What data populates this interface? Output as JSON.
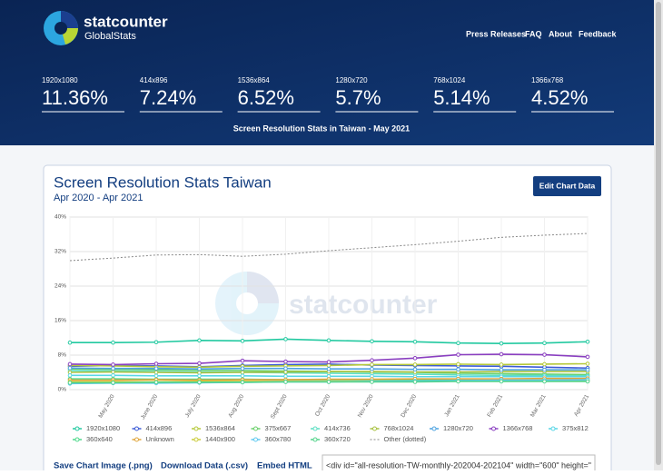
{
  "header": {
    "logo": "statcounter",
    "logo_sub": "GlobalStats",
    "nav": [
      "Press Releases",
      "FAQ",
      "About",
      "Feedback"
    ],
    "stats": [
      {
        "label": "1920x1080",
        "value": "11.36%"
      },
      {
        "label": "414x896",
        "value": "7.24%"
      },
      {
        "label": "1536x864",
        "value": "6.52%"
      },
      {
        "label": "1280x720",
        "value": "5.7%"
      },
      {
        "label": "768x1024",
        "value": "5.14%"
      },
      {
        "label": "1366x768",
        "value": "4.52%"
      }
    ],
    "subtitle": "Screen Resolution Stats in Taiwan - May 2021"
  },
  "card": {
    "title": "Screen Resolution Stats Taiwan",
    "subtitle": "Apr 2020 - Apr 2021",
    "button": "Edit Chart Data",
    "watermark": "statcounter",
    "links": [
      "Save Chart Image (.png)",
      "Download Data (.csv)",
      "Embed HTML"
    ],
    "embed_code": "<div id=\"all-resolution-TW-monthly-202004-202104\" width=\"600\" height=\""
  },
  "chart": {
    "type": "line",
    "categories": [
      null,
      "May 2020",
      "June 2020",
      "July 2020",
      "Aug 2020",
      "Sept 2020",
      "Oct 2020",
      "Nov 2020",
      "Dec 2020",
      "Jan 2021",
      "Feb 2021",
      "Mar 2021",
      "Apr 2021"
    ],
    "ylim": [
      0,
      40
    ],
    "yticks": [
      {
        "value": 0,
        "label": "0%"
      },
      {
        "value": 8,
        "label": "8%"
      },
      {
        "value": 16,
        "label": "16%"
      },
      {
        "value": 24,
        "label": "24%"
      },
      {
        "value": 32,
        "label": "32%"
      },
      {
        "value": 40,
        "label": "40%"
      }
    ],
    "grid": true,
    "series": [
      {
        "name": "1920x1080",
        "color": "#22c9a0",
        "values": [
          10.9,
          10.9,
          11.0,
          11.4,
          11.3,
          11.7,
          11.4,
          11.2,
          11.1,
          10.8,
          10.7,
          10.8,
          11.1
        ]
      },
      {
        "name": "414x896",
        "color": "#3c5bd6",
        "values": [
          5.4,
          5.6,
          5.5,
          5.3,
          5.6,
          5.8,
          5.9,
          5.7,
          5.6,
          5.5,
          5.4,
          5.2,
          5.0
        ]
      },
      {
        "name": "1536x864",
        "color": "#b5c93a",
        "values": [
          5.6,
          5.5,
          5.3,
          5.2,
          5.4,
          5.5,
          5.6,
          5.8,
          5.8,
          5.9,
          5.8,
          5.9,
          6.0
        ]
      },
      {
        "name": "375x667",
        "color": "#6bd06b",
        "values": [
          4.8,
          4.7,
          4.6,
          4.5,
          4.4,
          4.3,
          4.2,
          4.1,
          4.0,
          3.8,
          3.7,
          3.6,
          3.5
        ]
      },
      {
        "name": "414x736",
        "color": "#5ddfc3",
        "values": [
          4.4,
          4.3,
          4.2,
          4.1,
          4.0,
          3.9,
          3.8,
          3.7,
          3.6,
          3.4,
          3.3,
          3.3,
          3.2
        ]
      },
      {
        "name": "768x1024",
        "color": "#a7c13f",
        "values": [
          4.0,
          4.1,
          4.0,
          3.9,
          4.0,
          4.1,
          4.2,
          4.2,
          4.1,
          4.1,
          4.2,
          4.2,
          4.2
        ]
      },
      {
        "name": "1280x720",
        "color": "#4ea3e0",
        "values": [
          5.0,
          4.9,
          4.9,
          4.8,
          4.9,
          4.9,
          4.8,
          4.8,
          4.7,
          4.7,
          4.6,
          4.6,
          4.6
        ]
      },
      {
        "name": "1366x768",
        "color": "#8a3fc0",
        "values": [
          5.9,
          5.8,
          6.0,
          6.1,
          6.7,
          6.5,
          6.4,
          6.8,
          7.3,
          8.1,
          8.2,
          8.1,
          7.6
        ]
      },
      {
        "name": "375x812",
        "color": "#58d6e6",
        "values": [
          3.3,
          3.3,
          3.2,
          3.2,
          3.2,
          3.1,
          3.1,
          3.1,
          3.0,
          3.0,
          3.0,
          3.0,
          3.0
        ]
      },
      {
        "name": "360x640",
        "color": "#4ed98b",
        "values": [
          2.5,
          2.5,
          2.4,
          2.4,
          2.4,
          2.3,
          2.3,
          2.3,
          2.3,
          2.2,
          2.2,
          2.2,
          2.2
        ]
      },
      {
        "name": "Unknown",
        "color": "#e0a53a",
        "values": [
          2.2,
          2.2,
          2.3,
          2.2,
          2.3,
          2.3,
          2.4,
          2.4,
          2.5,
          2.5,
          2.5,
          2.6,
          2.6
        ]
      },
      {
        "name": "1440x900",
        "color": "#cbcc3b",
        "values": [
          1.8,
          1.8,
          1.8,
          1.9,
          1.9,
          1.9,
          1.9,
          1.9,
          2.0,
          2.0,
          2.0,
          2.0,
          2.0
        ]
      },
      {
        "name": "360x780",
        "color": "#5fc9f0",
        "values": [
          1.4,
          1.5,
          1.5,
          1.6,
          1.7,
          1.8,
          1.8,
          1.9,
          2.0,
          2.1,
          2.2,
          2.2,
          2.3
        ]
      },
      {
        "name": "360x720",
        "color": "#52d38a",
        "values": [
          1.6,
          1.6,
          1.7,
          1.7,
          1.7,
          1.8,
          1.8,
          1.8,
          1.8,
          1.9,
          1.9,
          1.9,
          1.9
        ]
      },
      {
        "name": "Other (dotted)",
        "color": "#888888",
        "dotted": true,
        "values": [
          29.9,
          30.5,
          31.2,
          31.3,
          30.9,
          31.4,
          32.2,
          32.9,
          33.6,
          34.4,
          35.3,
          35.8,
          36.2
        ]
      }
    ]
  }
}
